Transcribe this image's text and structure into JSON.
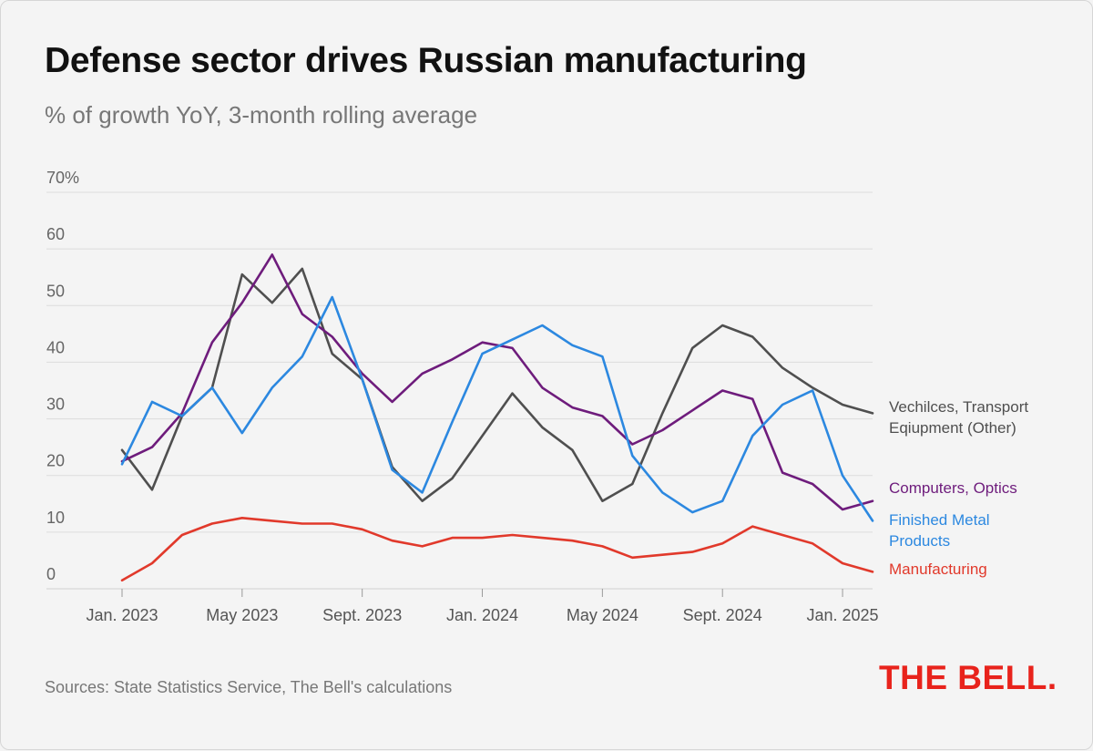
{
  "header": {
    "title": "Defense sector drives Russian manufacturing",
    "subtitle": "% of growth YoY, 3-month rolling average"
  },
  "footer": {
    "source": "Sources: State Statistics Service, The Bell's calculations",
    "logo": "THE BELL."
  },
  "chart_data": {
    "type": "line",
    "title": "Defense sector drives Russian manufacturing",
    "subtitle": "% of growth YoY, 3-month rolling average",
    "xlabel": "",
    "ylabel": "",
    "ylim": [
      0,
      70
    ],
    "y_ticks": [
      {
        "value": 0,
        "label": "0"
      },
      {
        "value": 10,
        "label": "10"
      },
      {
        "value": 20,
        "label": "20"
      },
      {
        "value": 30,
        "label": "30"
      },
      {
        "value": 40,
        "label": "40"
      },
      {
        "value": 50,
        "label": "50"
      },
      {
        "value": 60,
        "label": "60"
      },
      {
        "value": 70,
        "label": "70%"
      }
    ],
    "x_ticks": [
      {
        "index": 0,
        "label": "Jan. 2023"
      },
      {
        "index": 4,
        "label": "May 2023"
      },
      {
        "index": 8,
        "label": "Sept. 2023"
      },
      {
        "index": 12,
        "label": "Jan. 2024"
      },
      {
        "index": 16,
        "label": "May 2024"
      },
      {
        "index": 20,
        "label": "Sept. 2024"
      },
      {
        "index": 24,
        "label": "Jan. 2025"
      }
    ],
    "x": [
      "Jan. 2023",
      "Feb. 2023",
      "Mar. 2023",
      "Apr. 2023",
      "May 2023",
      "Jun. 2023",
      "Jul. 2023",
      "Aug. 2023",
      "Sept. 2023",
      "Oct. 2023",
      "Nov. 2023",
      "Dec. 2023",
      "Jan. 2024",
      "Feb. 2024",
      "Mar. 2024",
      "Apr. 2024",
      "May 2024",
      "Jun. 2024",
      "Jul. 2024",
      "Aug. 2024",
      "Sept. 2024",
      "Oct. 2024",
      "Nov. 2024",
      "Dec. 2024",
      "Jan. 2025",
      "Feb. 2025"
    ],
    "series": [
      {
        "name": "Vechilces, Transport Eqiupment (Other)",
        "label_lines": [
          "Vechilces, Transport",
          "Eqiupment (Other)"
        ],
        "color": "#4f4f4f",
        "values": [
          24.5,
          17.5,
          30.5,
          35.5,
          55.5,
          50.5,
          56.5,
          41.5,
          37,
          21.5,
          15.5,
          19.5,
          27,
          34.5,
          28.5,
          24.5,
          15.5,
          18.5,
          31,
          42.5,
          46.5,
          44.5,
          39,
          35.5,
          32.5,
          31
        ]
      },
      {
        "name": "Computers, Optics",
        "label_lines": [
          "Computers, Optics"
        ],
        "color": "#6e1c7c",
        "values": [
          22.5,
          25,
          31,
          43.5,
          50.5,
          59,
          48.5,
          44.5,
          38,
          33,
          38,
          40.5,
          43.5,
          42.5,
          35.5,
          32,
          30.5,
          25.5,
          28,
          31.5,
          35,
          33.5,
          20.5,
          18.5,
          14,
          15.5
        ]
      },
      {
        "name": "Finished Metal Products",
        "label_lines": [
          "Finished Metal",
          "Products"
        ],
        "color": "#2c88e0",
        "values": [
          22,
          33,
          30.5,
          35.5,
          27.5,
          35.5,
          41,
          51.5,
          37,
          21,
          17,
          29.5,
          41.5,
          44,
          46.5,
          43,
          41,
          23.5,
          17,
          13.5,
          15.5,
          27,
          32.5,
          35,
          20,
          12
        ]
      },
      {
        "name": "Manufacturing",
        "label_lines": [
          "Manufacturing"
        ],
        "color": "#e1392b",
        "values": [
          1.5,
          4.5,
          9.5,
          11.5,
          12.5,
          12,
          11.5,
          11.5,
          10.5,
          8.5,
          7.5,
          9,
          9,
          9.5,
          9,
          8.5,
          7.5,
          5.5,
          6,
          6.5,
          8,
          11,
          9.5,
          8,
          4.5,
          3
        ]
      }
    ]
  }
}
